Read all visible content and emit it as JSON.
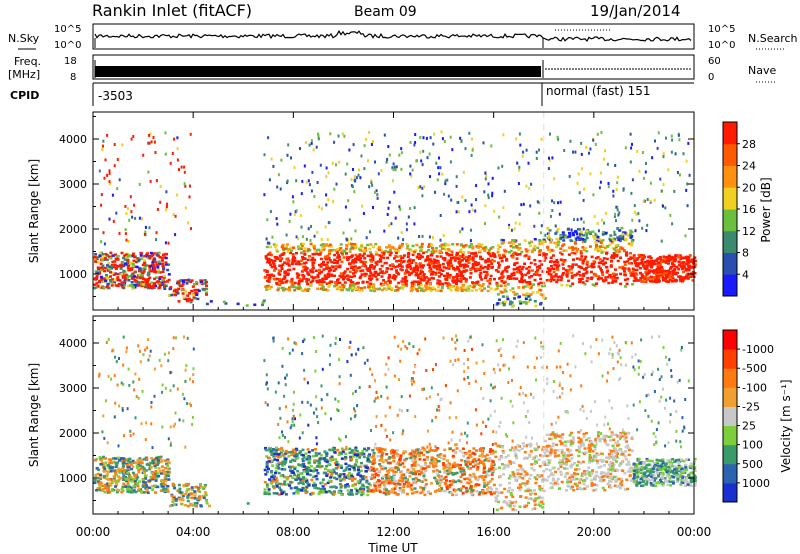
{
  "header": {
    "title": "Rankin Inlet (fitACF)",
    "beam": "Beam 09",
    "date": "19/Jan/2014"
  },
  "strips": {
    "noise": {
      "left_label": "N.Sky",
      "right_label": "N.Search",
      "left_ticks": [
        "10^5",
        "10^0"
      ],
      "right_ticks": [
        "10^5",
        "10^0"
      ]
    },
    "freq": {
      "left_label_1": "Freq.",
      "left_label_2": "[MHz]",
      "right_label": "Nave",
      "left_ticks": [
        "18",
        "8"
      ],
      "right_ticks": [
        "60",
        "0"
      ]
    },
    "cpid": {
      "label": "CPID",
      "mode_1": "-3503",
      "mode_2": "normal (fast) 151"
    }
  },
  "chart_data": [
    {
      "type": "heatmap",
      "name": "power",
      "ylabel": "Slant Range [km]",
      "ylim": [
        200,
        4600
      ],
      "yticks": [
        "1000",
        "2000",
        "3000",
        "4000"
      ],
      "colorbar": {
        "label": "Power [dB]",
        "ticks": [
          "4",
          "8",
          "12",
          "16",
          "20",
          "24",
          "28"
        ],
        "colors": [
          "#1a1aff",
          "#2b4fb0",
          "#3a8a6e",
          "#6cbf3e",
          "#f0d020",
          "#ff9010",
          "#ff5a00",
          "#ff1a00"
        ]
      }
    },
    {
      "type": "heatmap",
      "name": "velocity",
      "ylabel": "Slant Range [km]",
      "xlabel": "Time UT",
      "ylim": [
        200,
        4600
      ],
      "yticks": [
        "1000",
        "2000",
        "3000",
        "4000"
      ],
      "xticks": [
        "00:00",
        "04:00",
        "08:00",
        "12:00",
        "16:00",
        "20:00",
        "00:00"
      ],
      "colorbar": {
        "label": "Velocity [m s⁻¹]",
        "ticks": [
          "1000",
          "500",
          "100",
          "25",
          "-25",
          "-100",
          "-500",
          "-1000"
        ],
        "colors": [
          "#1a2fd0",
          "#2a63b0",
          "#3a9a6a",
          "#7ccf3a",
          "#c8c8c8",
          "#f0a030",
          "#ff7a10",
          "#ff4000",
          "#ff0000"
        ]
      }
    }
  ]
}
